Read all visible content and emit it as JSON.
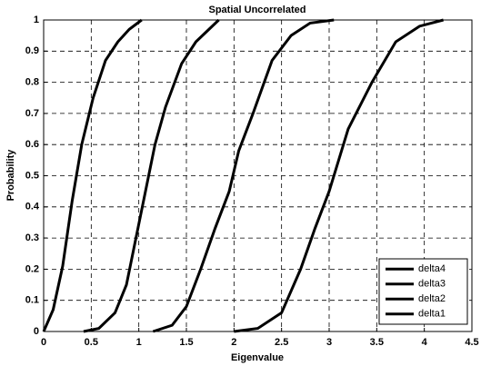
{
  "chart_data": {
    "type": "line",
    "title": "Spatial Uncorrelated",
    "x_label": "Eigenvalue",
    "y_label": "Probability",
    "xlim": [
      0,
      4.5
    ],
    "ylim": [
      0,
      1
    ],
    "xticks": [
      0,
      0.5,
      1,
      1.5,
      2,
      2.5,
      3,
      3.5,
      4,
      4.5
    ],
    "yticks": [
      0,
      0.1,
      0.2,
      0.3,
      0.4,
      0.5,
      0.6,
      0.7,
      0.8,
      0.9,
      1
    ],
    "grid": true,
    "legend": "lower right",
    "series": [
      {
        "name": "delta4",
        "color": "#000000",
        "x": [
          0,
          0.1,
          0.2,
          0.3,
          0.4,
          0.52,
          0.65,
          0.78,
          0.9,
          1.03
        ],
        "values": [
          0,
          0.07,
          0.21,
          0.42,
          0.6,
          0.75,
          0.87,
          0.93,
          0.97,
          1
        ]
      },
      {
        "name": "delta3",
        "color": "#000000",
        "x": [
          0.42,
          0.58,
          0.75,
          0.87,
          0.97,
          1.07,
          1.17,
          1.28,
          1.45,
          1.6,
          1.84
        ],
        "values": [
          0,
          0.01,
          0.06,
          0.15,
          0.3,
          0.45,
          0.6,
          0.72,
          0.86,
          0.93,
          1
        ]
      },
      {
        "name": "delta2",
        "color": "#000000",
        "x": [
          1.15,
          1.35,
          1.5,
          1.65,
          1.8,
          1.95,
          2.05,
          2.2,
          2.4,
          2.6,
          2.8,
          3.05
        ],
        "values": [
          0,
          0.02,
          0.08,
          0.2,
          0.33,
          0.45,
          0.58,
          0.7,
          0.87,
          0.95,
          0.99,
          1
        ]
      },
      {
        "name": "delta1",
        "color": "#000000",
        "x": [
          2.0,
          2.25,
          2.5,
          2.7,
          2.85,
          3.0,
          3.2,
          3.45,
          3.7,
          3.95,
          4.2
        ],
        "values": [
          0,
          0.01,
          0.06,
          0.2,
          0.33,
          0.45,
          0.65,
          0.8,
          0.93,
          0.98,
          1
        ]
      }
    ]
  }
}
